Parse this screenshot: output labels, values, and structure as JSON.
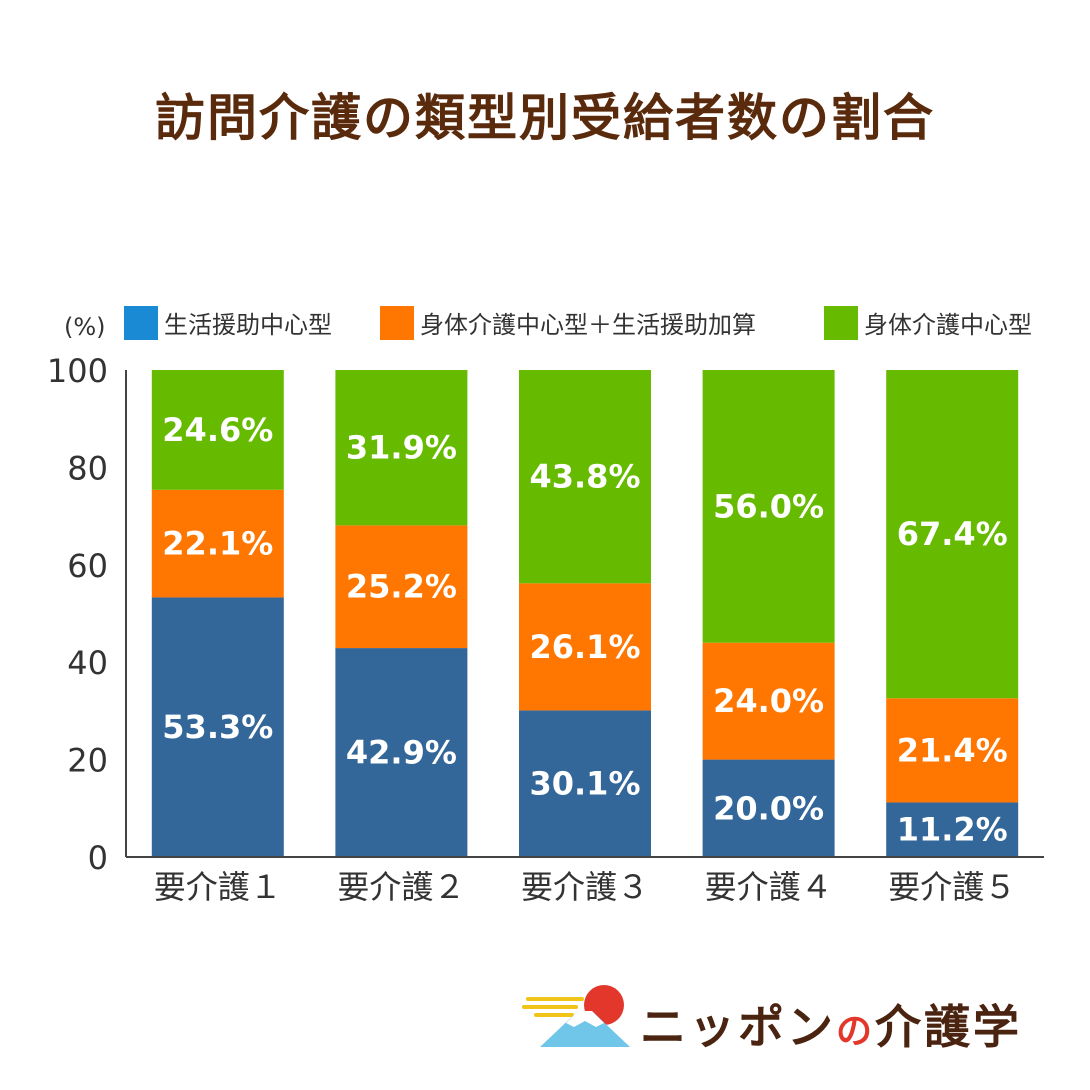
{
  "title": "訪問介護の類型別受給者数の割合",
  "chart_data": {
    "type": "bar",
    "stacked": true,
    "unit_label": "(%)",
    "categories": [
      "要介護１",
      "要介護２",
      "要介護３",
      "要介護４",
      "要介護５"
    ],
    "ylim": [
      0,
      100
    ],
    "yticks": [
      0,
      20,
      40,
      60,
      80,
      100
    ],
    "grid": false,
    "legend_position": "top",
    "series": [
      {
        "name": "生活援助中心型",
        "color": "#336699",
        "legend_color": "#1a8ad4",
        "values": [
          53.3,
          42.9,
          30.1,
          20.0,
          11.2
        ],
        "labels": [
          "53.3%",
          "42.9%",
          "30.1%",
          "20.0%",
          "11.2%"
        ]
      },
      {
        "name": "身体介護中心型＋生活援助加算",
        "color": "#ff7700",
        "legend_color": "#ff7700",
        "values": [
          22.1,
          25.2,
          26.1,
          24.0,
          21.4
        ],
        "labels": [
          "22.1%",
          "25.2%",
          "26.1%",
          "24.0%",
          "21.4%"
        ]
      },
      {
        "name": "身体介護中心型",
        "color": "#66bb00",
        "legend_color": "#66bb00",
        "values": [
          24.6,
          31.9,
          43.8,
          56.0,
          67.4
        ],
        "labels": [
          "24.6%",
          "31.9%",
          "43.8%",
          "56.0%",
          "67.4%"
        ]
      }
    ]
  },
  "brand": {
    "name_part1": "ニッポン",
    "name_part2": "の",
    "name_part3": "介護学",
    "logo_icon": "mount-fuji-sun-icon",
    "colors": {
      "sun": "#e3372b",
      "mountain": "#6fc6e8",
      "cloud": "#f0c419",
      "text": "#4a2410"
    }
  }
}
